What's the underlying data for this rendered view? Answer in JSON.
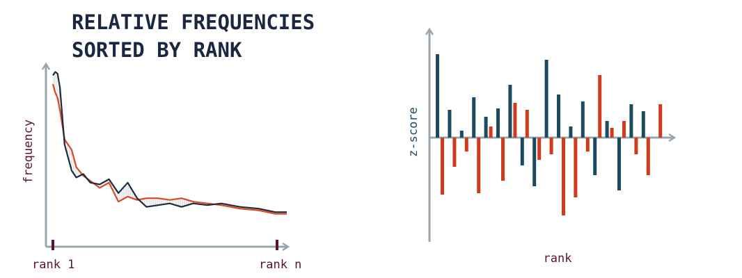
{
  "title_lines": [
    "RELATIVE FREQUENCIES",
    "SORTED BY RANK"
  ],
  "colors": {
    "axis": "#9aa6ad",
    "navy": "#1d2b3f",
    "orange": "#d9481f",
    "teal": "#1c4a60",
    "red": "#d23a1c",
    "maroon": "#5a1430",
    "hatch": "#c8ccd0",
    "title": "#1a2740"
  },
  "chart_data": [
    {
      "type": "line",
      "title": "RELATIVE FREQUENCIES SORTED BY RANK",
      "ylabel": "frequency",
      "x_tick_labels": [
        "rank 1",
        "rank n"
      ],
      "x": [
        0,
        0.01,
        0.02,
        0.03,
        0.05,
        0.08,
        0.1,
        0.13,
        0.16,
        0.2,
        0.24,
        0.28,
        0.32,
        0.36,
        0.4,
        0.45,
        0.5,
        0.55,
        0.6,
        0.66,
        0.72,
        0.8,
        0.88,
        0.95,
        1.0
      ],
      "ylim": [
        0,
        1
      ],
      "series": [
        {
          "values": [
            0.95,
            0.97,
            0.96,
            0.88,
            0.55,
            0.4,
            0.36,
            0.38,
            0.33,
            0.32,
            0.35,
            0.27,
            0.33,
            0.24,
            0.19,
            0.2,
            0.21,
            0.19,
            0.21,
            0.2,
            0.21,
            0.19,
            0.18,
            0.16,
            0.16
          ]
        },
        {
          "values": [
            0.9,
            0.85,
            0.82,
            0.75,
            0.58,
            0.52,
            0.42,
            0.37,
            0.34,
            0.3,
            0.33,
            0.22,
            0.25,
            0.23,
            0.24,
            0.24,
            0.23,
            0.24,
            0.22,
            0.21,
            0.2,
            0.18,
            0.17,
            0.15,
            0.15
          ]
        }
      ]
    },
    {
      "type": "bar",
      "ylabel": "z-score",
      "xlabel": "rank",
      "ylim": [
        -3.3,
        3.3
      ],
      "grid": false,
      "series": [
        {
          "values": [
            3.0,
            1.0,
            0.25,
            1.45,
            0.75,
            1.05,
            1.9,
            -1.0,
            -1.75,
            2.8,
            1.55,
            0.4,
            1.3,
            -1.35,
            0.6,
            -1.9,
            1.2,
            0.95
          ]
        },
        {
          "values": [
            -2.05,
            -1.05,
            -0.5,
            -2.0,
            0.4,
            -1.55,
            1.25,
            1.0,
            -0.8,
            -0.6,
            -2.8,
            -2.15,
            -0.5,
            2.25,
            0.35,
            0.6,
            -0.6,
            -1.35,
            1.2
          ]
        }
      ]
    }
  ]
}
